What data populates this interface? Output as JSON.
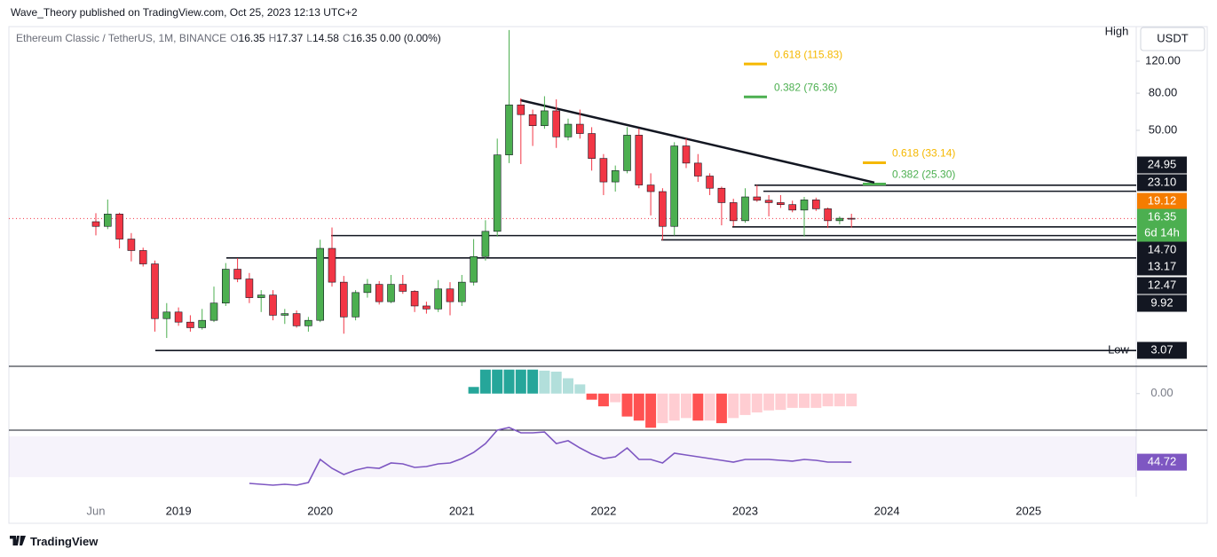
{
  "header": {
    "publisher": "Wave_Theory published on TradingView.com, Oct 25, 2023 12:13 UTC+2",
    "footer": "TradingView"
  },
  "chart_data": [
    {
      "type": "candlestick",
      "symbol": "Ethereum Classic / TetherUS, 1M, BINANCE",
      "ohlc_legend": [
        {
          "key": "O",
          "value": 16.35
        },
        {
          "key": "H",
          "value": 17.37
        },
        {
          "key": "L",
          "value": 14.58
        },
        {
          "key": "C",
          "value": 16.35
        }
      ],
      "change": "0.00 (0.00%)",
      "currency": "USDT",
      "high_label": "High",
      "low_label": "Low",
      "countdown": "6d 14h",
      "log": true,
      "ylim": [
        2.6,
        186
      ],
      "yticks": [
        {
          "value": 120,
          "label": "120.00"
        },
        {
          "value": 80,
          "label": "80.00"
        },
        {
          "value": 50,
          "label": "50.00"
        }
      ],
      "xticks": [
        "Jun",
        "2019",
        "2020",
        "2021",
        "2022",
        "2023",
        "2024",
        "2025"
      ],
      "up_color": "#4caf50",
      "down_color": "#f23645",
      "open": [
        15.7,
        14.8,
        17.3,
        12.6,
        10.9,
        9.2,
        4.6,
        5.0,
        4.4,
        4.1,
        4.5,
        5.6,
        8.6,
        7.6,
        6.0,
        6.2,
        4.8,
        4.9,
        4.2,
        4.5,
        11.2,
        7.3,
        4.7,
        6.4,
        7.1,
        5.7,
        7.1,
        6.5,
        5.4,
        5.2,
        6.7,
        5.7,
        7.3,
        10.1,
        13.9,
        36.6,
        69,
        61,
        53,
        64,
        46,
        54,
        48,
        35,
        26,
        30,
        47,
        25,
        23,
        14.8,
        41,
        33,
        28,
        24,
        20,
        15.9,
        21.5,
        20.6,
        20,
        19.5,
        18.2,
        20.7,
        18.5,
        15.9,
        16.4
      ],
      "high": [
        17.5,
        20.8,
        17.6,
        13.6,
        11.3,
        9.6,
        5.6,
        5.3,
        4.8,
        5.2,
        6.9,
        9.3,
        9.9,
        8.2,
        6.6,
        6.6,
        5.2,
        5.1,
        4.7,
        12.5,
        14.6,
        7.9,
        6.6,
        7.6,
        7.4,
        8.0,
        8.0,
        6.6,
        5.7,
        7.5,
        7.3,
        8.0,
        12.6,
        16.0,
        45,
        178,
        75,
        65,
        77,
        74,
        58,
        65,
        52,
        37,
        32,
        52,
        51,
        29,
        24,
        43,
        45,
        37,
        29,
        24.5,
        21,
        24,
        25,
        22,
        22,
        20.5,
        21.5,
        21.3,
        18.8,
        16.8,
        17.37
      ],
      "low": [
        13.2,
        14.3,
        11.2,
        9.5,
        8.9,
        3.9,
        3.6,
        4.2,
        3.9,
        4.0,
        4.4,
        5.4,
        7.3,
        5.6,
        5.0,
        4.5,
        4.3,
        4.1,
        3.9,
        4.4,
        6.9,
        3.8,
        4.5,
        6.0,
        5.5,
        5.6,
        6.3,
        5.0,
        4.9,
        5.0,
        4.8,
        5.4,
        7.0,
        9.6,
        13.0,
        33,
        32.6,
        41,
        51,
        40,
        44,
        45,
        30,
        22,
        23,
        29,
        24,
        17,
        12.4,
        13.2,
        31,
        26,
        22,
        15,
        14.8,
        15.5,
        20.2,
        16.8,
        18.7,
        17.7,
        13.0,
        18,
        14.5,
        15.2,
        14.58
      ],
      "close": [
        14.8,
        17.3,
        12.6,
        10.9,
        9.2,
        4.6,
        5.0,
        4.4,
        4.1,
        4.5,
        5.6,
        8.6,
        7.6,
        6.0,
        6.2,
        4.8,
        4.9,
        4.2,
        4.5,
        11.2,
        7.3,
        4.7,
        6.4,
        7.1,
        5.7,
        7.1,
        6.5,
        5.4,
        5.2,
        6.7,
        5.7,
        7.3,
        10.1,
        13.9,
        36.6,
        69,
        61,
        53,
        64,
        46,
        54,
        48,
        35,
        26,
        30,
        47,
        25,
        23,
        14.8,
        41,
        33,
        28,
        24,
        20,
        15.9,
        21.5,
        20.6,
        20,
        19.5,
        18.2,
        20.7,
        18.5,
        15.9,
        16.4,
        16.35
      ],
      "levels": [
        {
          "value": 24.95,
          "color": "#131722"
        },
        {
          "value": {
            "value": 23.1,
            "label": "23.10"
          },
          "color": "#131722"
        },
        {
          "value": 19.12,
          "color": "#f57c00"
        },
        {
          "value": 16.35,
          "color": "#4caf50"
        },
        {
          "value": {
            "value": 14.7,
            "label": "14.70"
          },
          "color": "#131722"
        },
        {
          "value": 13.17,
          "color": "#131722"
        },
        {
          "value": 12.47,
          "color": "#131722"
        },
        {
          "value": 9.92,
          "color": "#131722"
        },
        {
          "value": 3.07,
          "color": "#131722"
        }
      ],
      "fibs": [
        {
          "label": "0.618 (115.83)",
          "value": 115.83,
          "color": "#f5b800"
        },
        {
          "label": "0.382 (76.36)",
          "value": 76.36,
          "color": "#4caf50"
        },
        {
          "label": "0.618 (33.14)",
          "value": 33.14,
          "color": "#f5b800"
        },
        {
          "label": "0.382 (25.30)",
          "value": 25.3,
          "color": "#4caf50"
        }
      ],
      "trendline": [
        73.3,
        25.8
      ]
    },
    {
      "type": "bar",
      "ylim": [
        -7,
        5
      ],
      "yticks": [
        {
          "value": 0,
          "label": "0.00"
        }
      ],
      "colors": [
        "#26a69a",
        "#b2dfdb",
        "#ff5252",
        "#ffcdd2"
      ],
      "values": [
        null,
        null,
        null,
        null,
        null,
        null,
        null,
        null,
        null,
        null,
        null,
        null,
        null,
        null,
        null,
        null,
        null,
        null,
        null,
        null,
        null,
        null,
        null,
        null,
        null,
        null,
        null,
        null,
        null,
        null,
        null,
        null,
        1.3,
        4.7,
        4.7,
        4.7,
        4.7,
        4.7,
        4.5,
        4.3,
        3.0,
        1.8,
        -1.2,
        -2.5,
        -1.7,
        -4.5,
        -5.3,
        -6.7,
        -5.8,
        -5.3,
        -4.8,
        -5.3,
        -5.3,
        -5.8,
        -4.8,
        -4.2,
        -3.7,
        -3.3,
        -3.2,
        -2.8,
        -2.8,
        -2.8,
        -2.5,
        -2.5,
        -2.5
      ]
    },
    {
      "type": "line",
      "ylim": [
        20,
        80
      ],
      "band": [
        30,
        70
      ],
      "color": "#7e57c2",
      "last_label": 44.72,
      "values": [
        null,
        null,
        null,
        null,
        null,
        null,
        null,
        null,
        null,
        null,
        null,
        null,
        null,
        23.9,
        23.0,
        22.2,
        23.0,
        22.2,
        24.8,
        47.4,
        38.7,
        32.6,
        37.0,
        39.6,
        38.7,
        43.9,
        43.0,
        39.6,
        40.4,
        43.0,
        43.9,
        48.3,
        54.3,
        63.0,
        76.1,
        78.7,
        73.5,
        73.5,
        74.3,
        63.0,
        65.7,
        58.7,
        52.6,
        48.3,
        50.0,
        58.7,
        47.4,
        47.4,
        43.9,
        53.5,
        51.7,
        50.0,
        48.3,
        46.5,
        44.8,
        47.4,
        47.4,
        47.4,
        46.5,
        45.7,
        47.4,
        46.5,
        44.8,
        44.8,
        44.72
      ]
    }
  ]
}
